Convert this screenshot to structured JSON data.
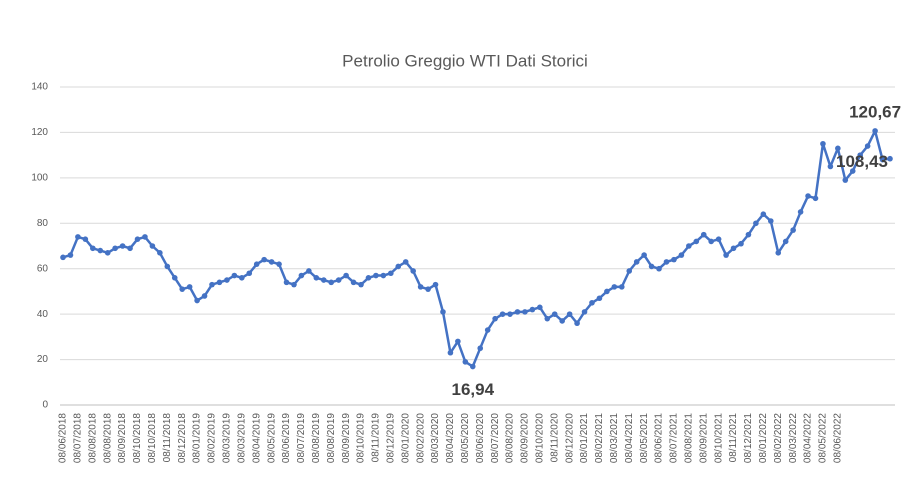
{
  "chart_data": {
    "type": "line",
    "title": "Petrolio Greggio WTI Dati Storici",
    "categories": [
      "08/06/2018",
      null,
      "08/07/2018",
      null,
      "08/08/2018",
      null,
      "08/08/2018",
      null,
      "08/09/2018",
      null,
      "08/10/2018",
      null,
      "08/10/2018",
      null,
      "08/11/2018",
      null,
      "08/12/2018",
      null,
      "08/01/2019",
      null,
      "08/02/2019",
      null,
      "08/03/2019",
      null,
      "08/03/2019",
      null,
      "08/04/2019",
      null,
      "08/05/2019",
      null,
      "08/06/2019",
      null,
      "08/07/2019",
      null,
      "08/08/2019",
      null,
      "08/08/2019",
      null,
      "08/09/2019",
      null,
      "08/10/2019",
      null,
      "08/11/2019",
      null,
      "08/12/2019",
      null,
      "08/01/2020",
      null,
      "08/02/2020",
      null,
      "08/03/2020",
      null,
      "08/04/2020",
      null,
      "08/05/2020",
      null,
      "08/06/2020",
      null,
      "08/07/2020",
      null,
      "08/08/2020",
      null,
      "08/09/2020",
      null,
      "08/10/2020",
      null,
      "08/11/2020",
      null,
      "08/12/2020",
      null,
      "08/01/2021",
      null,
      "08/02/2021",
      null,
      "08/03/2021",
      null,
      "08/04/2021",
      null,
      "08/05/2021",
      null,
      "08/06/2021",
      null,
      "08/07/2021",
      null,
      "08/08/2021",
      null,
      "08/09/2021",
      null,
      "08/10/2021",
      null,
      "08/11/2021",
      null,
      "08/12/2021",
      null,
      "08/01/2022",
      null,
      "08/02/2022",
      null,
      "08/03/2022",
      null,
      "08/04/2022",
      null,
      "08/05/2022",
      null,
      "08/06/2022",
      null,
      null,
      null,
      null,
      null,
      null,
      null
    ],
    "values": [
      65,
      66,
      74,
      73,
      69,
      68,
      67,
      69,
      70,
      69,
      73,
      74,
      70,
      67,
      61,
      56,
      51,
      52,
      46,
      48,
      53,
      54,
      55,
      57,
      56,
      58,
      62,
      64,
      63,
      62,
      54,
      53,
      57,
      59,
      56,
      55,
      54,
      55,
      57,
      54,
      53,
      56,
      57,
      57,
      58,
      61,
      63,
      59,
      52,
      51,
      53,
      41,
      23,
      28,
      19,
      16.94,
      25,
      33,
      38,
      40,
      40,
      41,
      41,
      42,
      43,
      38,
      40,
      37,
      40,
      36,
      41,
      45,
      47,
      50,
      52,
      52,
      59,
      63,
      66,
      61,
      60,
      63,
      64,
      66,
      70,
      72,
      75,
      72,
      73,
      66,
      69,
      71,
      75,
      80,
      84,
      81,
      67,
      72,
      77,
      85,
      92,
      91,
      115,
      105,
      113,
      99,
      103,
      110,
      114,
      120.67,
      108,
      108.43
    ],
    "value_labels": [
      null,
      null,
      null,
      null,
      null,
      null,
      null,
      null,
      null,
      null,
      null,
      null,
      null,
      null,
      null,
      null,
      null,
      null,
      null,
      null,
      null,
      null,
      null,
      null,
      null,
      null,
      null,
      null,
      null,
      null,
      null,
      null,
      null,
      null,
      null,
      null,
      null,
      null,
      null,
      null,
      null,
      null,
      null,
      null,
      null,
      null,
      null,
      null,
      null,
      null,
      null,
      null,
      null,
      null,
      null,
      "16,94",
      null,
      null,
      null,
      null,
      null,
      null,
      null,
      null,
      null,
      null,
      null,
      null,
      null,
      null,
      null,
      null,
      null,
      null,
      null,
      null,
      null,
      null,
      null,
      null,
      null,
      null,
      null,
      null,
      null,
      null,
      null,
      null,
      null,
      null,
      null,
      null,
      null,
      null,
      null,
      null,
      null,
      null,
      null,
      null,
      null,
      null,
      null,
      null,
      null,
      null,
      null,
      null,
      null,
      "120,67",
      null,
      "108,43"
    ],
    "color": "#4472c4",
    "ylim": [
      0,
      140
    ],
    "yticks": [
      0,
      20,
      40,
      60,
      80,
      100,
      120,
      140
    ],
    "grid": true
  }
}
